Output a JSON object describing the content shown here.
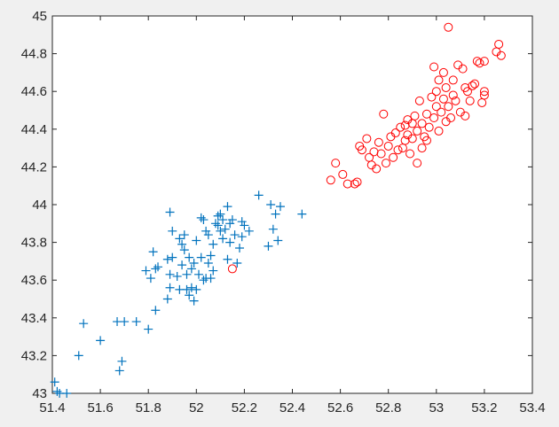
{
  "chart_data": {
    "type": "scatter",
    "title": "",
    "xlabel": "",
    "ylabel": "",
    "xlim": [
      51.4,
      53.4
    ],
    "ylim": [
      43,
      45
    ],
    "x_ticks": [
      "51.4",
      "51.6",
      "51.8",
      "52",
      "52.2",
      "52.4",
      "52.6",
      "52.8",
      "53",
      "53.2",
      "53.4"
    ],
    "y_ticks": [
      "43",
      "43.2",
      "43.4",
      "43.6",
      "43.8",
      "44",
      "44.2",
      "44.4",
      "44.6",
      "44.8",
      "45"
    ],
    "grid": false,
    "series": [
      {
        "marker": "plus",
        "color": "#0072bd",
        "points": [
          [
            51.41,
            43.06
          ],
          [
            51.42,
            43.01
          ],
          [
            51.43,
            43.0
          ],
          [
            51.46,
            43.0
          ],
          [
            51.51,
            43.2
          ],
          [
            51.53,
            43.37
          ],
          [
            51.6,
            43.28
          ],
          [
            51.67,
            43.38
          ],
          [
            51.68,
            43.12
          ],
          [
            51.69,
            43.17
          ],
          [
            51.7,
            43.38
          ],
          [
            51.75,
            43.38
          ],
          [
            51.79,
            43.65
          ],
          [
            51.8,
            43.34
          ],
          [
            51.81,
            43.61
          ],
          [
            51.82,
            43.75
          ],
          [
            51.83,
            43.44
          ],
          [
            51.83,
            43.66
          ],
          [
            51.84,
            43.67
          ],
          [
            51.88,
            43.5
          ],
          [
            51.88,
            43.71
          ],
          [
            51.89,
            43.56
          ],
          [
            51.89,
            43.63
          ],
          [
            51.89,
            43.96
          ],
          [
            51.9,
            43.72
          ],
          [
            51.9,
            43.86
          ],
          [
            51.92,
            43.62
          ],
          [
            51.93,
            43.55
          ],
          [
            51.93,
            43.82
          ],
          [
            51.94,
            43.68
          ],
          [
            51.94,
            43.79
          ],
          [
            51.95,
            43.84
          ],
          [
            51.95,
            43.76
          ],
          [
            51.96,
            43.63
          ],
          [
            51.96,
            43.55
          ],
          [
            51.97,
            43.52
          ],
          [
            51.97,
            43.72
          ],
          [
            51.98,
            43.66
          ],
          [
            51.98,
            43.56
          ],
          [
            51.99,
            43.69
          ],
          [
            51.99,
            43.49
          ],
          [
            52.0,
            43.55
          ],
          [
            52.0,
            43.81
          ],
          [
            52.01,
            43.63
          ],
          [
            52.02,
            43.93
          ],
          [
            52.02,
            43.72
          ],
          [
            52.03,
            43.6
          ],
          [
            52.03,
            43.92
          ],
          [
            52.04,
            43.61
          ],
          [
            52.04,
            43.86
          ],
          [
            52.05,
            43.69
          ],
          [
            52.05,
            43.84
          ],
          [
            52.06,
            43.61
          ],
          [
            52.06,
            43.73
          ],
          [
            52.07,
            43.65
          ],
          [
            52.07,
            43.79
          ],
          [
            52.08,
            43.9
          ],
          [
            52.09,
            43.94
          ],
          [
            52.09,
            43.89
          ],
          [
            52.1,
            43.95
          ],
          [
            52.1,
            43.86
          ],
          [
            52.11,
            43.92
          ],
          [
            52.11,
            43.82
          ],
          [
            52.12,
            43.87
          ],
          [
            52.13,
            43.99
          ],
          [
            52.13,
            43.71
          ],
          [
            52.14,
            43.9
          ],
          [
            52.14,
            43.8
          ],
          [
            52.15,
            43.92
          ],
          [
            52.16,
            43.84
          ],
          [
            52.17,
            43.69
          ],
          [
            52.18,
            43.77
          ],
          [
            52.19,
            43.91
          ],
          [
            52.19,
            43.83
          ],
          [
            52.2,
            43.89
          ],
          [
            52.22,
            43.86
          ],
          [
            52.26,
            44.05
          ],
          [
            52.3,
            43.78
          ],
          [
            52.31,
            44.0
          ],
          [
            52.32,
            43.87
          ],
          [
            52.33,
            43.95
          ],
          [
            52.34,
            43.81
          ],
          [
            52.35,
            43.99
          ],
          [
            52.44,
            43.95
          ]
        ]
      },
      {
        "marker": "circle",
        "color": "#ff0000",
        "points": [
          [
            52.15,
            43.66
          ],
          [
            52.56,
            44.13
          ],
          [
            52.58,
            44.22
          ],
          [
            52.61,
            44.16
          ],
          [
            52.63,
            44.11
          ],
          [
            52.66,
            44.11
          ],
          [
            52.67,
            44.12
          ],
          [
            52.68,
            44.31
          ],
          [
            52.69,
            44.29
          ],
          [
            52.71,
            44.35
          ],
          [
            52.72,
            44.25
          ],
          [
            52.73,
            44.21
          ],
          [
            52.74,
            44.28
          ],
          [
            52.75,
            44.19
          ],
          [
            52.76,
            44.33
          ],
          [
            52.77,
            44.27
          ],
          [
            52.78,
            44.48
          ],
          [
            52.79,
            44.22
          ],
          [
            52.8,
            44.31
          ],
          [
            52.81,
            44.36
          ],
          [
            52.82,
            44.25
          ],
          [
            52.83,
            44.38
          ],
          [
            52.84,
            44.29
          ],
          [
            52.85,
            44.41
          ],
          [
            52.86,
            44.3
          ],
          [
            52.87,
            44.42
          ],
          [
            52.87,
            44.34
          ],
          [
            52.88,
            44.45
          ],
          [
            52.88,
            44.37
          ],
          [
            52.89,
            44.27
          ],
          [
            52.9,
            44.43
          ],
          [
            52.9,
            44.35
          ],
          [
            52.91,
            44.47
          ],
          [
            52.92,
            44.22
          ],
          [
            52.92,
            44.39
          ],
          [
            52.93,
            44.55
          ],
          [
            52.94,
            44.3
          ],
          [
            52.94,
            44.43
          ],
          [
            52.95,
            44.36
          ],
          [
            52.96,
            44.48
          ],
          [
            52.96,
            44.34
          ],
          [
            52.97,
            44.41
          ],
          [
            52.98,
            44.57
          ],
          [
            52.99,
            44.46
          ],
          [
            52.99,
            44.73
          ],
          [
            53.0,
            44.52
          ],
          [
            53.0,
            44.6
          ],
          [
            53.01,
            44.39
          ],
          [
            53.01,
            44.66
          ],
          [
            53.02,
            44.49
          ],
          [
            53.03,
            44.56
          ],
          [
            53.03,
            44.7
          ],
          [
            53.04,
            44.44
          ],
          [
            53.04,
            44.62
          ],
          [
            53.05,
            44.52
          ],
          [
            53.05,
            44.94
          ],
          [
            53.06,
            44.46
          ],
          [
            53.07,
            44.58
          ],
          [
            53.07,
            44.66
          ],
          [
            53.08,
            44.55
          ],
          [
            53.09,
            44.74
          ],
          [
            53.1,
            44.49
          ],
          [
            53.11,
            44.72
          ],
          [
            53.12,
            44.62
          ],
          [
            53.12,
            44.47
          ],
          [
            53.13,
            44.6
          ],
          [
            53.14,
            44.55
          ],
          [
            53.15,
            44.63
          ],
          [
            53.16,
            44.64
          ],
          [
            53.17,
            44.76
          ],
          [
            53.18,
            44.75
          ],
          [
            53.19,
            44.54
          ],
          [
            53.2,
            44.58
          ],
          [
            53.2,
            44.6
          ],
          [
            53.2,
            44.76
          ],
          [
            53.25,
            44.81
          ],
          [
            53.26,
            44.85
          ],
          [
            53.27,
            44.79
          ]
        ]
      }
    ]
  }
}
